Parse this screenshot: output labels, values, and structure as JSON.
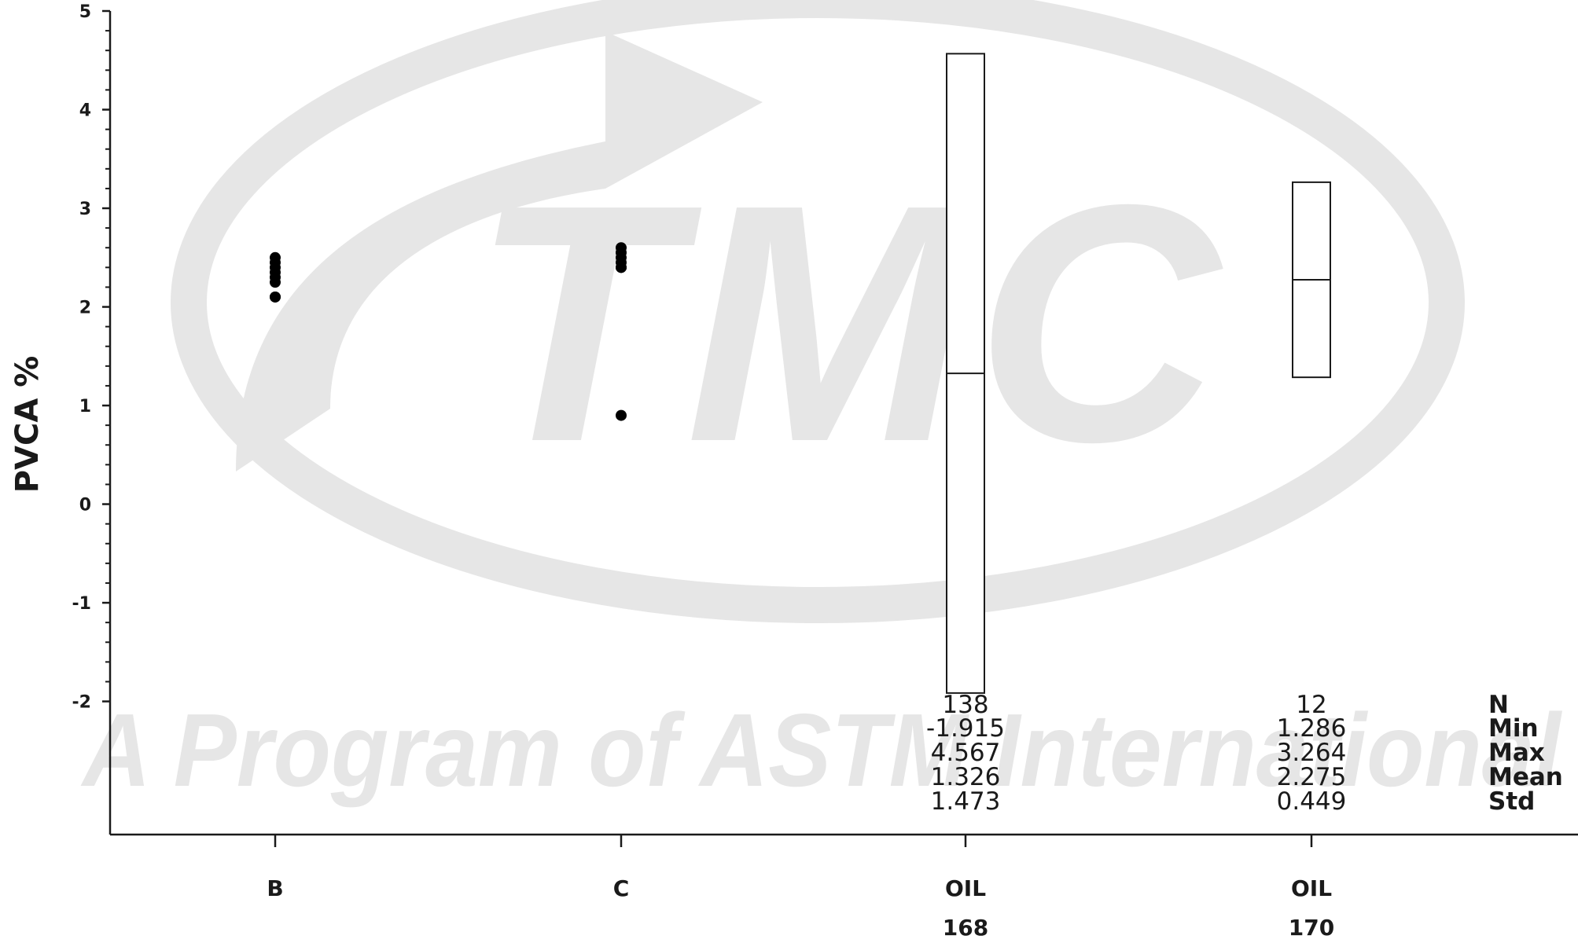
{
  "watermark": {
    "logo_text": "TMC",
    "tagline": "A Program of ASTM International",
    "color": "#e6e6e6"
  },
  "chart_data": {
    "type": "box",
    "ylabel": "PVCA %",
    "ylim": [
      -3.35,
      5
    ],
    "yticks": [
      -2,
      -1,
      0,
      1,
      2,
      3,
      4,
      5
    ],
    "categories": [
      {
        "line1": "B",
        "line2": ""
      },
      {
        "line1": "C",
        "line2": ""
      },
      {
        "line1": "OIL",
        "line2": "168"
      },
      {
        "line1": "OIL",
        "line2": "170"
      }
    ],
    "points": [
      {
        "category": 0,
        "values": [
          2.5,
          2.45,
          2.4,
          2.35,
          2.3,
          2.25,
          2.1,
          2.1
        ]
      },
      {
        "category": 1,
        "values": [
          2.6,
          2.55,
          2.5,
          2.45,
          2.4,
          2.4,
          0.9
        ]
      }
    ],
    "boxes": [
      {
        "category": 2,
        "min": -1.915,
        "max": 4.567,
        "mean": 1.326
      },
      {
        "category": 3,
        "min": 1.286,
        "max": 3.264,
        "mean": 2.275
      }
    ],
    "stats_labels": [
      "N",
      "Min",
      "Max",
      "Mean",
      "Std"
    ],
    "stats": [
      {
        "category": 2,
        "values": [
          "138",
          "-1.915",
          "4.567",
          "1.326",
          "1.473"
        ]
      },
      {
        "category": 3,
        "values": [
          "12",
          "1.286",
          "3.264",
          "2.275",
          "0.449"
        ]
      }
    ],
    "colors": {
      "axis": "#1a1a1a",
      "point": "#000000",
      "box_fill": "#ffffff"
    }
  }
}
